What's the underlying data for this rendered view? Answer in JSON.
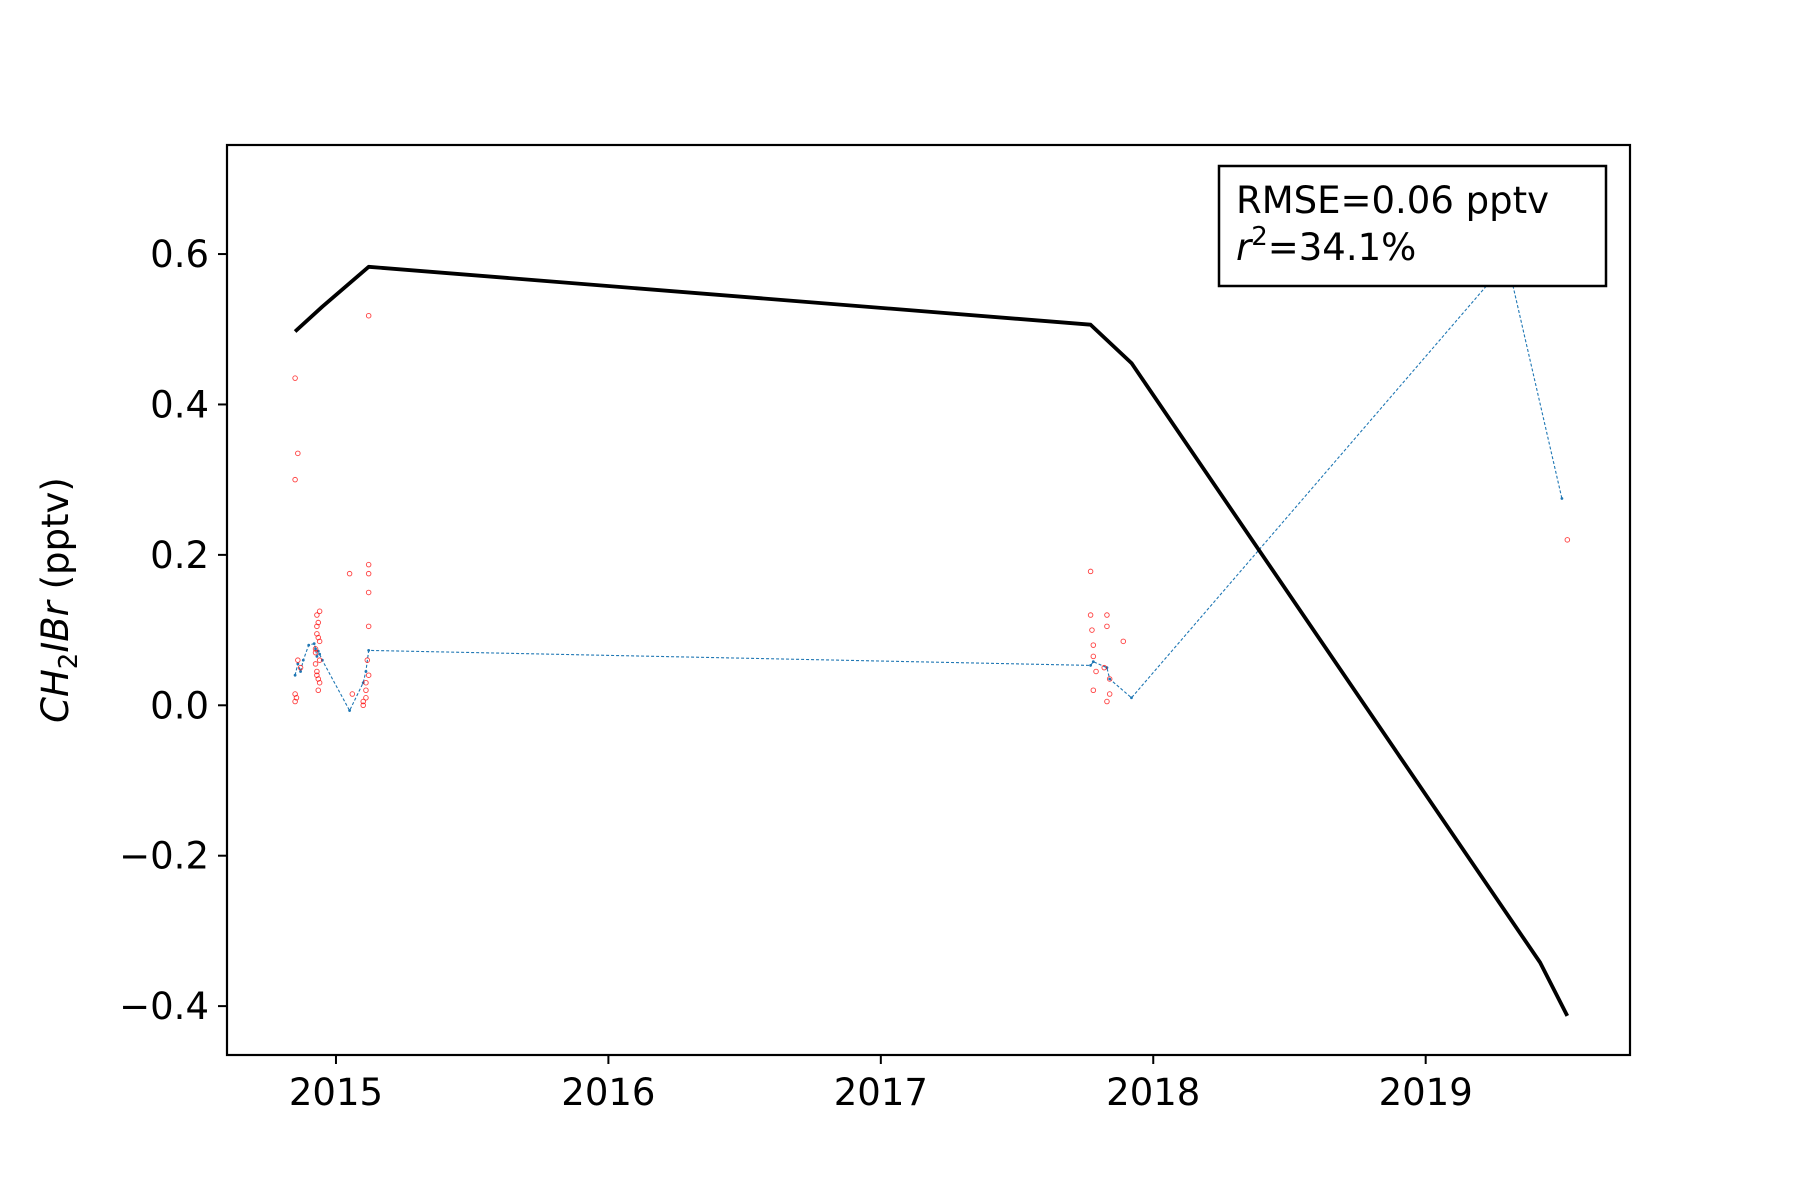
{
  "chart_data": {
    "type": "line",
    "title": "",
    "xlabel": "",
    "ylabel": {
      "base": "CH",
      "sub": "2",
      "rest": "IBr",
      "unit": " (pptv)"
    },
    "xlim": [
      2014.6,
      2019.75
    ],
    "ylim": [
      -0.465,
      0.745
    ],
    "x_ticks": [
      {
        "value": 2015,
        "label": "2015"
      },
      {
        "value": 2016,
        "label": "2016"
      },
      {
        "value": 2017,
        "label": "2017"
      },
      {
        "value": 2018,
        "label": "2018"
      },
      {
        "value": 2019,
        "label": "2019"
      }
    ],
    "y_ticks": [
      {
        "value": 0.6,
        "label": "0.6"
      },
      {
        "value": 0.4,
        "label": "0.4"
      },
      {
        "value": 0.2,
        "label": "0.2"
      },
      {
        "value": 0.0,
        "label": "0.0"
      },
      {
        "value": -0.2,
        "label": "−0.2"
      },
      {
        "value": -0.4,
        "label": "−0.4"
      }
    ],
    "grid": false,
    "stats_box": {
      "line1": "RMSE=0.06 pptv",
      "r_symbol": "r",
      "r_sup": "2",
      "r_rest": "=34.1%"
    },
    "series": [
      {
        "kind": "trend",
        "color": "#000000",
        "x": [
          2014.85,
          2014.95,
          2015.12,
          2017.77,
          2017.92,
          2019.42,
          2019.52
        ],
        "y": [
          0.497,
          0.53,
          0.583,
          0.506,
          0.455,
          -0.342,
          -0.413
        ]
      },
      {
        "kind": "model",
        "color": "#1f77b4",
        "x": [
          2014.85,
          2014.86,
          2014.87,
          2014.88,
          2014.9,
          2014.92,
          2014.925,
          2014.93,
          2014.935,
          2014.94,
          2014.95,
          2015.05,
          2015.1,
          2015.11,
          2015.12,
          2017.77,
          2017.78,
          2017.83,
          2017.84,
          2017.92,
          2019.3,
          2019.5
        ],
        "y": [
          0.04,
          0.055,
          0.045,
          0.06,
          0.08,
          0.082,
          0.075,
          0.065,
          0.072,
          0.068,
          0.06,
          -0.007,
          0.03,
          0.045,
          0.073,
          0.053,
          0.058,
          0.05,
          0.035,
          0.01,
          0.59,
          0.275
        ]
      },
      {
        "kind": "observations",
        "color": "#ff0000",
        "x": [
          2014.85,
          2014.85,
          2014.855,
          2014.85,
          2014.85,
          2014.86,
          2014.86,
          2014.87,
          2014.93,
          2014.93,
          2014.93,
          2014.935,
          2014.935,
          2014.94,
          2014.94,
          2014.925,
          2014.925,
          2014.93,
          2014.94,
          2014.935,
          2014.93,
          2014.94,
          2014.925,
          2014.935,
          2015.05,
          2015.06,
          2015.1,
          2015.1,
          2015.11,
          2015.11,
          2015.12,
          2015.12,
          2015.12,
          2015.12,
          2015.12,
          2015.115,
          2015.12,
          2015.11,
          2017.77,
          2017.77,
          2017.775,
          2017.78,
          2017.78,
          2017.79,
          2017.78,
          2017.82,
          2017.83,
          2017.83,
          2017.84,
          2017.84,
          2017.83,
          2017.89,
          2019.52
        ],
        "y": [
          0.435,
          0.3,
          0.01,
          0.005,
          0.015,
          0.335,
          0.06,
          0.05,
          0.12,
          0.105,
          0.095,
          0.11,
          0.09,
          0.125,
          0.085,
          0.07,
          0.055,
          0.04,
          0.03,
          0.02,
          0.045,
          0.06,
          0.075,
          0.035,
          0.175,
          0.015,
          0.005,
          0.0,
          0.02,
          0.01,
          0.518,
          0.187,
          0.175,
          0.15,
          0.105,
          0.06,
          0.04,
          0.03,
          0.178,
          0.12,
          0.1,
          0.08,
          0.065,
          0.045,
          0.02,
          0.05,
          0.12,
          0.105,
          0.035,
          0.015,
          0.005,
          0.085,
          0.22
        ]
      }
    ]
  }
}
